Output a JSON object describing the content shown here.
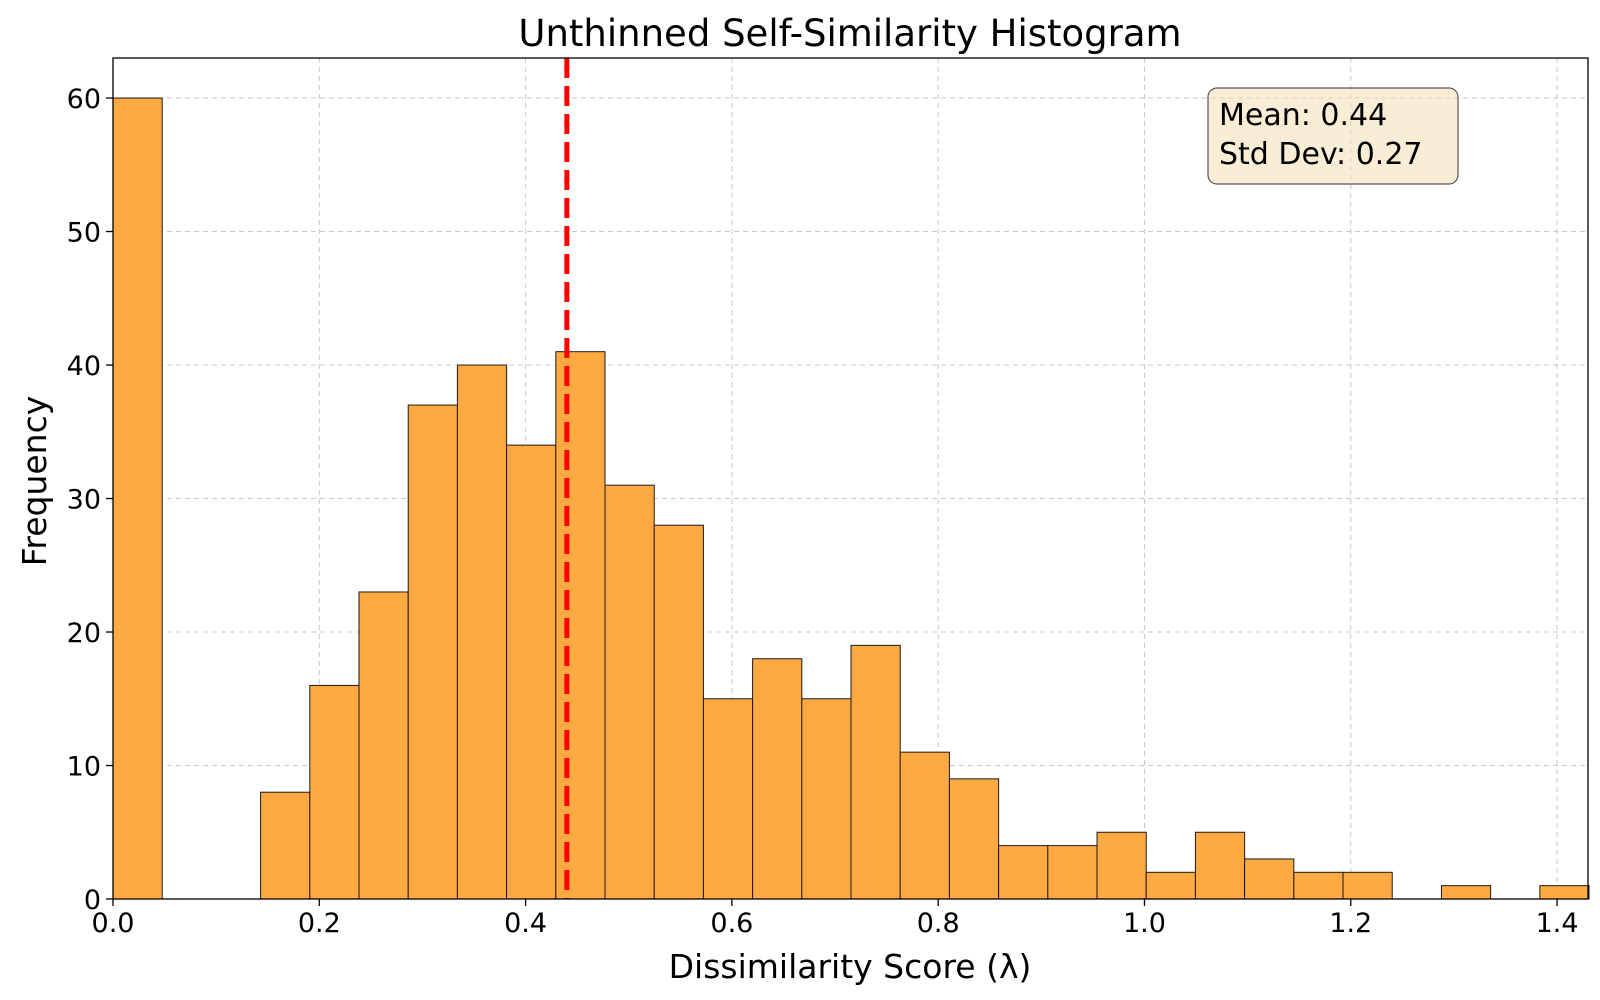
{
  "chart_data": {
    "type": "bar",
    "title": "Unthinned Self-Similarity Histogram",
    "xlabel": "Dissimilarity Score (λ)",
    "ylabel": "Frequency",
    "xlim": [
      0.0,
      1.43
    ],
    "ylim": [
      0,
      63
    ],
    "xticks": [
      "0.0",
      "0.2",
      "0.4",
      "0.6",
      "0.8",
      "1.0",
      "1.2",
      "1.4"
    ],
    "yticks": [
      "0",
      "10",
      "20",
      "30",
      "40",
      "50",
      "60"
    ],
    "grid": true,
    "bin_width": 0.0477,
    "bin_start": 0.0,
    "counts": [
      60,
      0,
      0,
      8,
      16,
      23,
      37,
      40,
      34,
      41,
      31,
      28,
      15,
      18,
      15,
      19,
      11,
      9,
      4,
      4,
      5,
      2,
      5,
      3,
      2,
      2,
      0,
      1,
      0,
      1
    ],
    "mean_line": 0.44,
    "bar_color": "#ffa943",
    "mean_line_color": "#ff0000",
    "stats_box": {
      "mean": "Mean: 0.44",
      "std": "Std Dev: 0.27",
      "placement": "top-right"
    }
  }
}
